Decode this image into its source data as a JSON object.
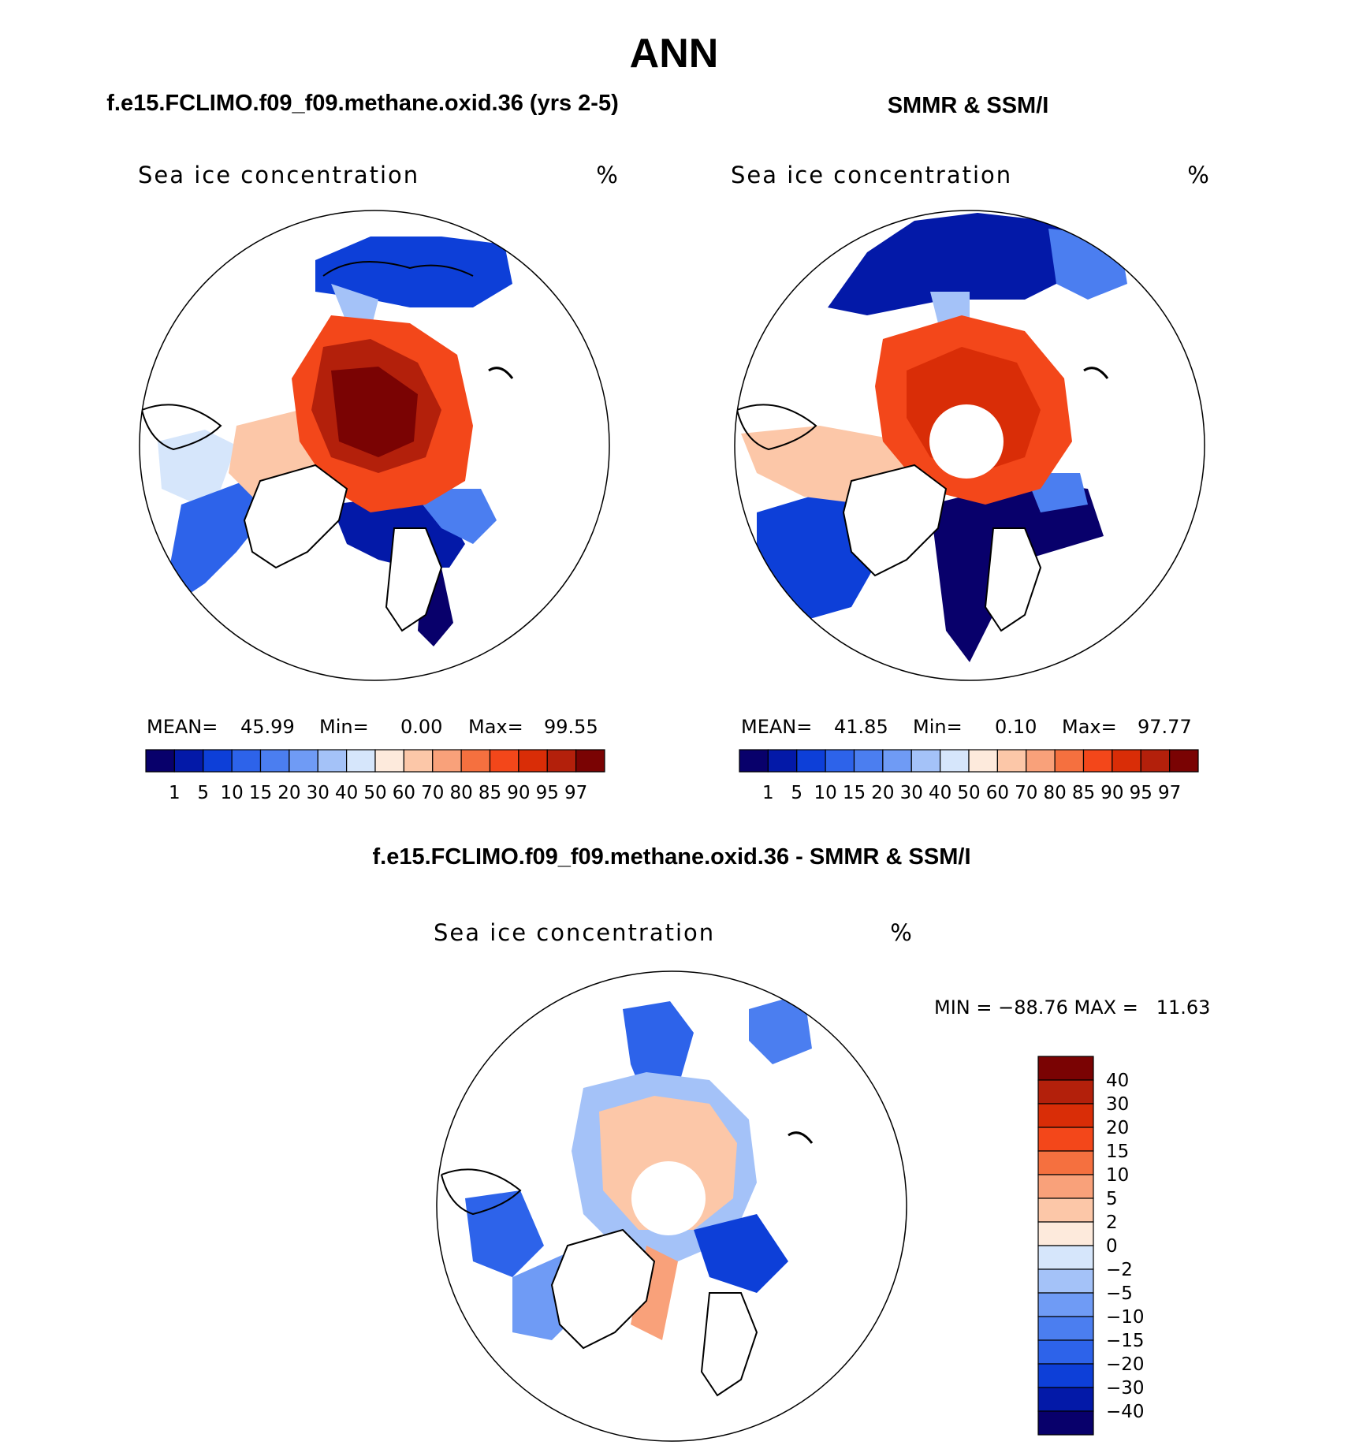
{
  "figure": {
    "title": "ANN",
    "panels": [
      {
        "case_title": "f.e15.FCLIMO.f09_f09.methane.oxid.36 (yrs 2-5)",
        "variable": "Sea ice concentration",
        "units": "%",
        "stats": {
          "mean_label": "MEAN=",
          "mean": "45.99",
          "min_label": "Min=",
          "min": "0.00",
          "max_label": "Max=",
          "max": "99.55"
        }
      },
      {
        "case_title": "SMMR & SSM/I",
        "variable": "Sea ice concentration",
        "units": "%",
        "stats": {
          "mean_label": "MEAN=",
          "mean": "41.85",
          "min_label": "Min=",
          "min": "0.10",
          "max_label": "Max=",
          "max": "97.77"
        }
      },
      {
        "case_title": "f.e15.FCLIMO.f09_f09.methane.oxid.36 - SMMR & SSM/I",
        "variable": "Sea ice concentration",
        "units": "%",
        "minmax_text": "MIN = −88.76 MAX =   11.63"
      }
    ],
    "abs_colorbar": {
      "levels": [
        "1",
        "5",
        "10",
        "15",
        "20",
        "30",
        "40",
        "50",
        "60",
        "70",
        "80",
        "85",
        "90",
        "95",
        "97"
      ],
      "colors": [
        "#08006b",
        "#0319a8",
        "#0d3fd8",
        "#2d63ea",
        "#4b7ef0",
        "#6f9bf5",
        "#a4c2f8",
        "#d6e6fb",
        "#fdeadc",
        "#fcc7a8",
        "#f9a17a",
        "#f5703f",
        "#f3471a",
        "#d92d07",
        "#b3200b",
        "#7a0303"
      ]
    },
    "diff_colorbar": {
      "levels": [
        "40",
        "30",
        "20",
        "15",
        "10",
        "5",
        "2",
        "0",
        "−2",
        "−5",
        "−10",
        "−15",
        "−20",
        "−30",
        "−40"
      ],
      "colors": [
        "#7a0303",
        "#b3200b",
        "#d92d07",
        "#f3471a",
        "#f5703f",
        "#f9a17a",
        "#fcc7a8",
        "#fdeadc",
        "#d6e6fb",
        "#a4c2f8",
        "#6f9bf5",
        "#4b7ef0",
        "#2d63ea",
        "#0d3fd8",
        "#0319a8",
        "#08006b"
      ]
    }
  }
}
